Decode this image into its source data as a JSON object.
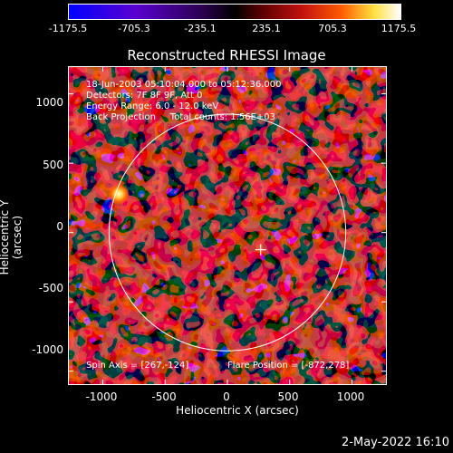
{
  "colorbar": {
    "tick_labels": [
      "-1175.5",
      "-705.3",
      "-235.1",
      "235.1",
      "705.3",
      "1175.5"
    ],
    "min": -1175.5,
    "max": 1175.5
  },
  "chart_data": {
    "type": "heatmap",
    "title": "Reconstructed RHESSI Image",
    "xlabel": "Heliocentric X (arcsec)",
    "ylabel": "Heliocentric Y (arcsec)",
    "xlim": [
      -1280,
      1280
    ],
    "ylim": [
      -1100,
      1200
    ],
    "xticks": [
      "-1000",
      "-500",
      "0",
      "500",
      "1000"
    ],
    "yticks": [
      "1000",
      "500",
      "0",
      "-500",
      "-1000"
    ],
    "solar_limb_radius_arcsec": 950,
    "spin_axis": [
      267,
      -124
    ],
    "flare_position": [
      -872,
      278
    ],
    "colormap": [
      "#0000ff",
      "#7a00c0",
      "#000000",
      "#c01010",
      "#ff5000",
      "#ffff60",
      "#ffffff"
    ]
  },
  "annotations": {
    "time_range": "18-Jun-2003 05:10:04.000 to 05:12:36.000",
    "detectors": "Detectors: 7F 8F 9F, Att 0",
    "energy_range": "Energy Range: 6.0 - 12.0 keV",
    "method_and_counts": "Back Projection     Total counts: 1.56E+03",
    "spin_axis_label": "Spin Axis = [267,-124]",
    "flare_position_label": "Flare Position = [-872,278]"
  },
  "timestamp": "2-May-2022 16:10"
}
